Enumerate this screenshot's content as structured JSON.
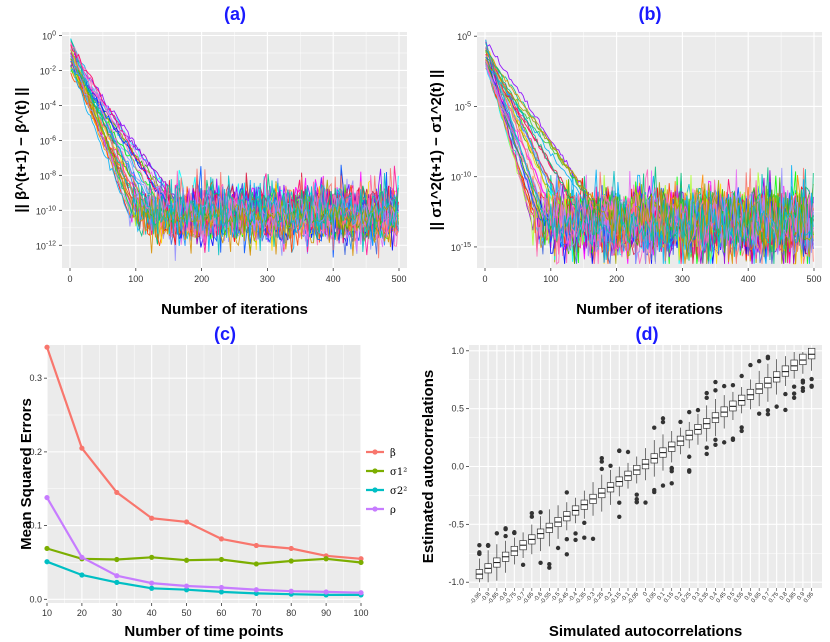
{
  "chart_data": [
    {
      "id": "a",
      "type": "line",
      "title": "(a)",
      "xlabel": "Number of iterations",
      "ylabel": "|| β^(t+1) − β^(t) ||",
      "yscale": "log10",
      "xlim": [
        0,
        500
      ],
      "ylim_exp": [
        -13.3,
        0.2
      ],
      "xticks": [
        0,
        100,
        200,
        300,
        400,
        500
      ],
      "xtick_labels": [
        "0",
        "100",
        "200",
        "300",
        "400",
        "500"
      ],
      "yticks_exp": [
        0,
        -2,
        -4,
        -6,
        -8,
        -10,
        -12
      ],
      "ytick_labels": [
        "10^0",
        "10^-2",
        "10^-4",
        "10^-6",
        "10^-8",
        "10^-10",
        "10^-12"
      ],
      "n_series": 40,
      "series_summary": {
        "start_exp_range": [
          -2,
          -0.1
        ],
        "converge_iteration_range": [
          90,
          180
        ],
        "noise_floor_exp": [
          -12,
          -8.3
        ]
      }
    },
    {
      "id": "b",
      "type": "line",
      "title": "(b)",
      "xlabel": "Number of iterations",
      "ylabel": "|| σ1^2(t+1) − σ1^2(t) ||",
      "yscale": "log10",
      "xlim": [
        0,
        500
      ],
      "ylim_exp": [
        -16.5,
        0.3
      ],
      "xticks": [
        0,
        100,
        200,
        300,
        400,
        500
      ],
      "xtick_labels": [
        "0",
        "100",
        "200",
        "300",
        "400",
        "500"
      ],
      "yticks_exp": [
        0,
        -5,
        -10,
        -15
      ],
      "ytick_labels": [
        "10^0",
        "10^-5",
        "10^-10",
        "10^-15"
      ],
      "n_series": 40,
      "series_summary": {
        "start_exp_range": [
          -2,
          -0.2
        ],
        "converge_iteration_range": [
          70,
          190
        ],
        "noise_floor_exp": [
          -16,
          -10.4
        ]
      }
    },
    {
      "id": "c",
      "type": "line",
      "title": "(c)",
      "xlabel": "Number of time points",
      "ylabel": "Mean Squared Errors",
      "categories": [
        10,
        20,
        30,
        40,
        50,
        60,
        70,
        80,
        90,
        100
      ],
      "xlim": [
        10,
        100
      ],
      "ylim": [
        -0.005,
        0.345
      ],
      "yticks": [
        0.0,
        0.1,
        0.2,
        0.3
      ],
      "ytick_labels": [
        "0.0",
        "0.1",
        "0.2",
        "0.3"
      ],
      "series": [
        {
          "name": "β",
          "color": "#f8766d",
          "values": [
            0.342,
            0.205,
            0.145,
            0.11,
            0.105,
            0.082,
            0.073,
            0.069,
            0.059,
            0.055
          ]
        },
        {
          "name": "σ1²",
          "color": "#7cae00",
          "values": [
            0.069,
            0.055,
            0.054,
            0.057,
            0.053,
            0.054,
            0.048,
            0.052,
            0.055,
            0.05
          ]
        },
        {
          "name": "σ2²",
          "color": "#00bfc4",
          "values": [
            0.051,
            0.033,
            0.023,
            0.015,
            0.013,
            0.01,
            0.008,
            0.007,
            0.006,
            0.006
          ]
        },
        {
          "name": "ρ",
          "color": "#c77cff",
          "values": [
            0.138,
            0.057,
            0.032,
            0.022,
            0.018,
            0.016,
            0.013,
            0.011,
            0.01,
            0.009
          ]
        }
      ],
      "legend_position": "right"
    },
    {
      "id": "d",
      "type": "box",
      "title": "(d)",
      "xlabel": "Simulated autocorrelations",
      "ylabel": "Estimated autocorrelations",
      "categories": [
        -0.95,
        -0.9,
        -0.85,
        -0.8,
        -0.75,
        -0.7,
        -0.65,
        -0.6,
        -0.55,
        -0.5,
        -0.45,
        -0.4,
        -0.35,
        -0.3,
        -0.25,
        -0.2,
        -0.15,
        -0.1,
        -0.05,
        0,
        0.05,
        0.1,
        0.15,
        0.2,
        0.25,
        0.3,
        0.35,
        0.4,
        0.45,
        0.5,
        0.55,
        0.6,
        0.65,
        0.7,
        0.75,
        0.8,
        0.85,
        0.9,
        0.95
      ],
      "category_labels": [
        "-0.95",
        "-0.9",
        "-0.85",
        "-0.8",
        "-0.75",
        "-0.7",
        "-0.65",
        "-0.6",
        "-0.55",
        "-0.5",
        "-0.45",
        "-0.4",
        "-0.35",
        "-0.3",
        "-0.25",
        "-0.2",
        "-0.15",
        "-0.1",
        "-0.05",
        "0",
        "0.05",
        "0.1",
        "0.15",
        "0.2",
        "0.25",
        "0.3",
        "0.35",
        "0.4",
        "0.45",
        "0.5",
        "0.55",
        "0.6",
        "0.65",
        "0.7",
        "0.75",
        "0.8",
        "0.85",
        "0.9",
        "0.95"
      ],
      "ylim": [
        -1.05,
        1.05
      ],
      "yticks": [
        -1.0,
        -0.5,
        0.0,
        0.5,
        1.0
      ],
      "ytick_labels": [
        "-1.0",
        "-0.5",
        "0.0",
        "0.5",
        "1.0"
      ],
      "box_stats": {
        "median_offset": 0.02,
        "iqr_half": 0.04,
        "whisker_half_min": 0.07,
        "whisker_half_max": 0.12
      }
    }
  ]
}
